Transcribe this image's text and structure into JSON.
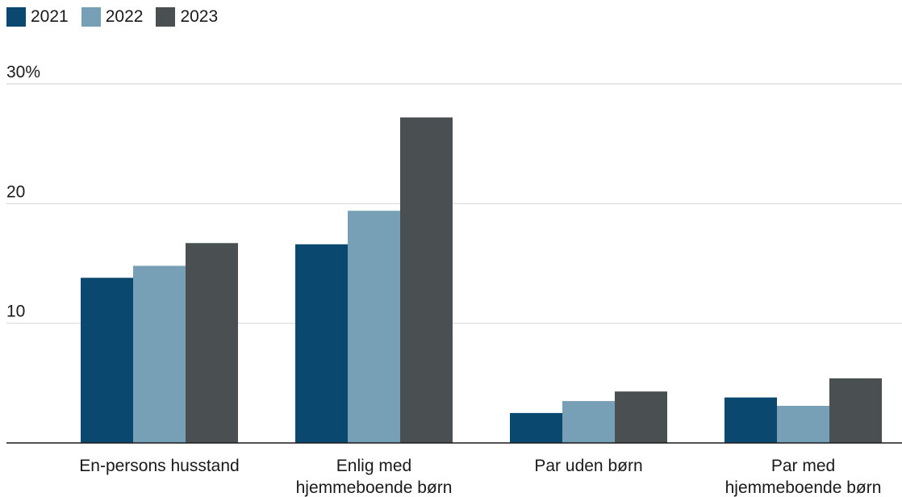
{
  "chart_data": {
    "type": "bar",
    "title": "",
    "xlabel": "",
    "ylabel": "",
    "categories": [
      [
        "En-persons husstand"
      ],
      [
        "Enlig med",
        "hjemmeboende børn"
      ],
      [
        "Par uden børn"
      ],
      [
        "Par med",
        "hjemmeboende børn"
      ]
    ],
    "series": [
      {
        "name": "2021",
        "color": "#0b4870",
        "values": [
          13.8,
          16.6,
          2.5,
          3.8
        ]
      },
      {
        "name": "2022",
        "color": "#779fb5",
        "values": [
          14.8,
          19.4,
          3.5,
          3.1
        ]
      },
      {
        "name": "2023",
        "color": "#4a4f51",
        "values": [
          16.7,
          27.2,
          4.3,
          5.4
        ]
      }
    ],
    "ylim": [
      0,
      30
    ],
    "yticks": [
      {
        "value": 10,
        "label": "10"
      },
      {
        "value": 20,
        "label": "20"
      },
      {
        "value": 30,
        "label": "30%"
      }
    ],
    "grid": true,
    "legend_position": "top-left"
  }
}
